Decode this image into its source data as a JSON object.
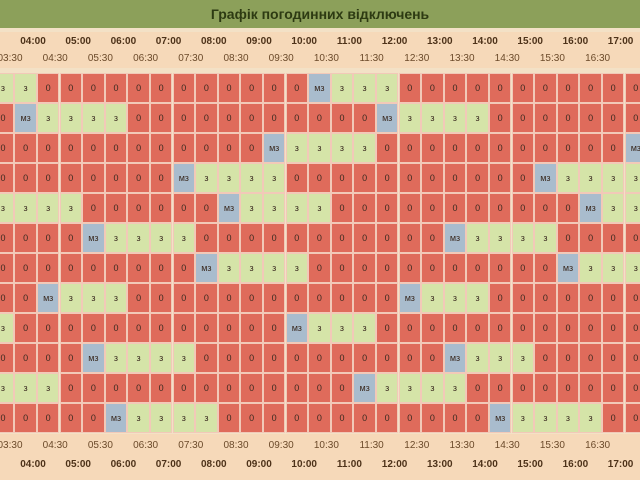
{
  "title": "Графік погодинних відключень",
  "hours": [
    "04:00",
    "05:00",
    "06:00",
    "07:00",
    "08:00",
    "09:00",
    "10:00",
    "11:00",
    "12:00",
    "13:00",
    "14:00",
    "15:00",
    "16:00",
    "17:00"
  ],
  "half_hours": [
    "03:30",
    "04:30",
    "05:30",
    "06:30",
    "07:30",
    "08:30",
    "09:30",
    "10:30",
    "11:30",
    "12:30",
    "13:30",
    "14:30",
    "15:30",
    "16:30"
  ],
  "rows": [
    [
      "з",
      "з",
      "0",
      "0",
      "0",
      "0",
      "0",
      "0",
      "0",
      "0",
      "0",
      "0",
      "0",
      "0",
      "мз",
      "з",
      "з",
      "з",
      "0",
      "0",
      "0",
      "0",
      "0",
      "0",
      "0",
      "0",
      "0",
      "0",
      "0"
    ],
    [
      "0",
      "мз",
      "з",
      "з",
      "з",
      "з",
      "0",
      "0",
      "0",
      "0",
      "0",
      "0",
      "0",
      "0",
      "0",
      "0",
      "0",
      "мз",
      "з",
      "з",
      "з",
      "з",
      "0",
      "0",
      "0",
      "0",
      "0",
      "0",
      "0"
    ],
    [
      "0",
      "0",
      "0",
      "0",
      "0",
      "0",
      "0",
      "0",
      "0",
      "0",
      "0",
      "0",
      "мз",
      "з",
      "з",
      "з",
      "з",
      "0",
      "0",
      "0",
      "0",
      "0",
      "0",
      "0",
      "0",
      "0",
      "0",
      "0",
      "мз"
    ],
    [
      "0",
      "0",
      "0",
      "0",
      "0",
      "0",
      "0",
      "0",
      "мз",
      "з",
      "з",
      "з",
      "з",
      "0",
      "0",
      "0",
      "0",
      "0",
      "0",
      "0",
      "0",
      "0",
      "0",
      "0",
      "мз",
      "з",
      "з",
      "з",
      "з"
    ],
    [
      "з",
      "з",
      "з",
      "з",
      "0",
      "0",
      "0",
      "0",
      "0",
      "0",
      "мз",
      "з",
      "з",
      "з",
      "з",
      "0",
      "0",
      "0",
      "0",
      "0",
      "0",
      "0",
      "0",
      "0",
      "0",
      "0",
      "мз",
      "з",
      "з"
    ],
    [
      "0",
      "0",
      "0",
      "0",
      "мз",
      "з",
      "з",
      "з",
      "з",
      "0",
      "0",
      "0",
      "0",
      "0",
      "0",
      "0",
      "0",
      "0",
      "0",
      "0",
      "мз",
      "з",
      "з",
      "з",
      "з",
      "0",
      "0",
      "0",
      "0"
    ],
    [
      "0",
      "0",
      "0",
      "0",
      "0",
      "0",
      "0",
      "0",
      "0",
      "мз",
      "з",
      "з",
      "з",
      "з",
      "0",
      "0",
      "0",
      "0",
      "0",
      "0",
      "0",
      "0",
      "0",
      "0",
      "0",
      "мз",
      "з",
      "з",
      "з"
    ],
    [
      "0",
      "0",
      "мз",
      "з",
      "з",
      "з",
      "0",
      "0",
      "0",
      "0",
      "0",
      "0",
      "0",
      "0",
      "0",
      "0",
      "0",
      "0",
      "мз",
      "з",
      "з",
      "з",
      "0",
      "0",
      "0",
      "0",
      "0",
      "0",
      "0"
    ],
    [
      "з",
      "0",
      "0",
      "0",
      "0",
      "0",
      "0",
      "0",
      "0",
      "0",
      "0",
      "0",
      "0",
      "мз",
      "з",
      "з",
      "з",
      "0",
      "0",
      "0",
      "0",
      "0",
      "0",
      "0",
      "0",
      "0",
      "0",
      "0",
      "0"
    ],
    [
      "0",
      "0",
      "0",
      "0",
      "мз",
      "з",
      "з",
      "з",
      "з",
      "0",
      "0",
      "0",
      "0",
      "0",
      "0",
      "0",
      "0",
      "0",
      "0",
      "0",
      "мз",
      "з",
      "з",
      "з",
      "0",
      "0",
      "0",
      "0",
      "0"
    ],
    [
      "з",
      "з",
      "з",
      "0",
      "0",
      "0",
      "0",
      "0",
      "0",
      "0",
      "0",
      "0",
      "0",
      "0",
      "0",
      "0",
      "мз",
      "з",
      "з",
      "з",
      "з",
      "0",
      "0",
      "0",
      "0",
      "0",
      "0",
      "0",
      "0"
    ],
    [
      "0",
      "0",
      "0",
      "0",
      "0",
      "мз",
      "з",
      "з",
      "з",
      "з",
      "0",
      "0",
      "0",
      "0",
      "0",
      "0",
      "0",
      "0",
      "0",
      "0",
      "0",
      "0",
      "мз",
      "з",
      "з",
      "з",
      "з",
      "0",
      "0"
    ]
  ]
}
